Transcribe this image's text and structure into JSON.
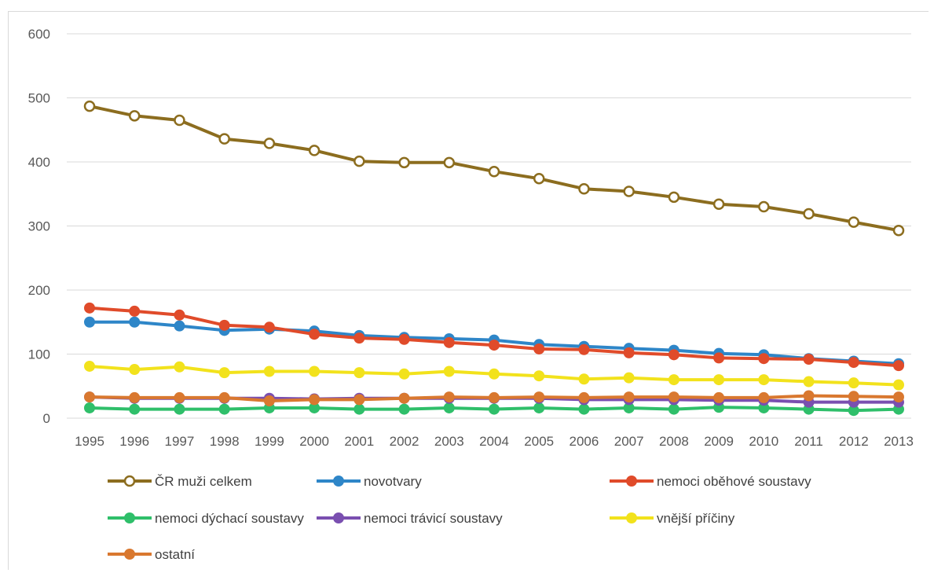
{
  "chart_data": {
    "type": "line",
    "title": "",
    "xlabel": "",
    "ylabel": "",
    "ylim": [
      0,
      600
    ],
    "yticks": [
      0,
      100,
      200,
      300,
      400,
      500,
      600
    ],
    "grid": true,
    "legend_position": "bottom",
    "x": [
      "1995",
      "1996",
      "1997",
      "1998",
      "1999",
      "2000",
      "2001",
      "2002",
      "2003",
      "2004",
      "2005",
      "2006",
      "2007",
      "2008",
      "2009",
      "2010",
      "2011",
      "2012",
      "2013"
    ],
    "series": [
      {
        "name": "ČR muži celkem",
        "color": "#8c6d1f",
        "marker": "hollow",
        "values": [
          487,
          472,
          465,
          436,
          429,
          418,
          401,
          399,
          399,
          385,
          374,
          358,
          354,
          345,
          334,
          330,
          319,
          306,
          293
        ]
      },
      {
        "name": "novotvary",
        "color": "#2e86c8",
        "marker": "filled",
        "values": [
          150,
          150,
          144,
          137,
          139,
          136,
          129,
          126,
          124,
          122,
          115,
          112,
          109,
          106,
          101,
          99,
          93,
          89,
          85
        ]
      },
      {
        "name": "nemoci oběhové soustavy",
        "color": "#e04b2a",
        "marker": "filled",
        "values": [
          172,
          167,
          161,
          145,
          142,
          131,
          125,
          123,
          118,
          114,
          108,
          107,
          102,
          99,
          94,
          93,
          92,
          87,
          82
        ]
      },
      {
        "name": "nemoci dýchací soustavy",
        "color": "#2fbf6a",
        "marker": "filled",
        "values": [
          16,
          14,
          14,
          14,
          16,
          16,
          14,
          14,
          16,
          14,
          16,
          14,
          16,
          14,
          17,
          16,
          14,
          12,
          14
        ]
      },
      {
        "name": "nemoci trávicí soustavy",
        "color": "#7a4fb0",
        "marker": "filled",
        "values": [
          33,
          31,
          31,
          31,
          31,
          30,
          31,
          31,
          31,
          31,
          31,
          29,
          29,
          29,
          28,
          28,
          25,
          25,
          25
        ]
      },
      {
        "name": "vnější příčiny",
        "color": "#f2e21c",
        "marker": "filled",
        "values": [
          81,
          76,
          80,
          71,
          73,
          73,
          71,
          69,
          73,
          69,
          66,
          61,
          63,
          60,
          60,
          60,
          57,
          55,
          52
        ]
      },
      {
        "name": "ostatní",
        "color": "#d9782f",
        "marker": "filled",
        "values": [
          33,
          32,
          32,
          32,
          27,
          29,
          29,
          31,
          33,
          32,
          33,
          32,
          33,
          33,
          32,
          32,
          35,
          34,
          33
        ]
      }
    ]
  }
}
